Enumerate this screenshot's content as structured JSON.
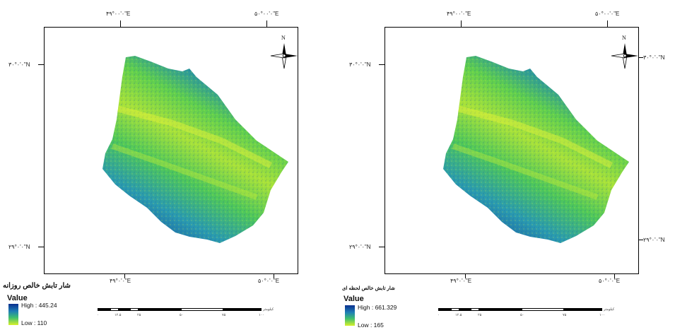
{
  "panels": [
    {
      "top_coords": [
        "۴۹°۰۰'۰\"E",
        "۵۰°۰۰'۰\"E"
      ],
      "bottom_coords": [
        "۴۹°۰'۰\"E",
        "۵۰°۰'۰\"E"
      ],
      "left_coords": [
        "۳۰°۰'۰\"N",
        "۲۹°۰'۰\"N"
      ],
      "right_coords": [
        "",
        ""
      ],
      "north_label": "N",
      "legend": {
        "title": "شار تابش خالص روزانه",
        "value_label": "Value",
        "high": "High : 445.24",
        "low": "Low : 110"
      },
      "scale": {
        "unit": "کیلومتر",
        "labels": [
          "۰",
          "۱۲.۵",
          "۲۵",
          "۵۰",
          "۷۵",
          "۱۰۰"
        ]
      }
    },
    {
      "top_coords": [
        "۴۹°۰۰'۰\"E",
        "۵۰°۰۰'۰\"E"
      ],
      "bottom_coords": [
        "۴۹°۰'۰\"E",
        "۵۰°۰'۰\"E"
      ],
      "left_coords": [
        "۳۰°۰'۰\"N",
        "۲۹°۰'۰\"N"
      ],
      "right_coords": [
        "۳۰°۰'۰\"N",
        "۲۹°۰'۰\"N"
      ],
      "north_label": "N",
      "legend": {
        "title": "شار تابش خالص لحظه ای",
        "value_label": "Value",
        "high": "High : 661.329",
        "low": "Low : 165"
      },
      "scale": {
        "unit": "کیلومتر",
        "labels": [
          "۰",
          "۱۲.۵",
          "۲۵",
          "۵۰",
          "۷۵",
          "۱۰۰"
        ]
      }
    }
  ],
  "colors": {
    "ramp_high": "#0a2f8f",
    "ramp_mid": "#3fbf6e",
    "ramp_low": "#d8f02a"
  }
}
